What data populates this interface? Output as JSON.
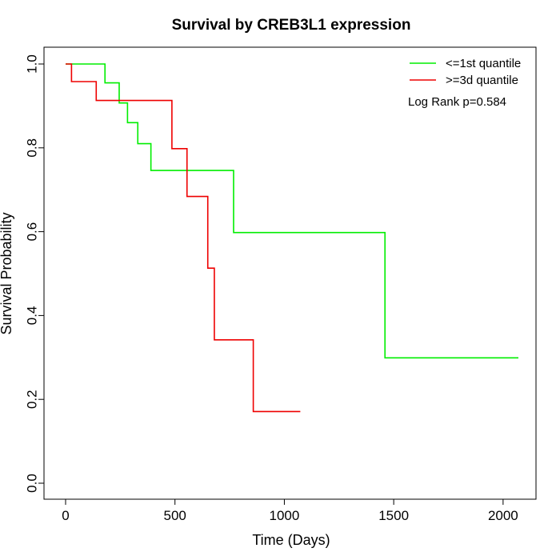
{
  "chart_data": {
    "type": "line",
    "title": "Survival by CREB3L1 expression",
    "xlabel": "Time (Days)",
    "ylabel": "Survival Probability",
    "xlim": [
      0,
      2100
    ],
    "ylim": [
      0,
      1
    ],
    "x_ticks": [
      0,
      500,
      1000,
      1500,
      2000
    ],
    "x_tick_labels": [
      "0",
      "500",
      "1000",
      "1500",
      "2000"
    ],
    "y_ticks": [
      0.0,
      0.2,
      0.4,
      0.6,
      0.8,
      1.0
    ],
    "y_tick_labels": [
      "0.0",
      "0.2",
      "0.4",
      "0.6",
      "0.8",
      "1.0"
    ],
    "grid": false,
    "legend_position": "top-right",
    "annotation": "Log Rank p=0.584",
    "series": [
      {
        "name": "<=1st quantile",
        "color": "#00ee00",
        "step": true,
        "points": [
          {
            "x": 0,
            "y": 1.0
          },
          {
            "x": 180,
            "y": 0.955
          },
          {
            "x": 245,
            "y": 0.907
          },
          {
            "x": 283,
            "y": 0.86
          },
          {
            "x": 330,
            "y": 0.81
          },
          {
            "x": 390,
            "y": 0.746
          },
          {
            "x": 768,
            "y": 0.598
          },
          {
            "x": 1460,
            "y": 0.299
          },
          {
            "x": 2070,
            "y": 0.299
          }
        ]
      },
      {
        "name": ">=3d quantile",
        "color": "#ee0000",
        "step": true,
        "points": [
          {
            "x": 0,
            "y": 1.0
          },
          {
            "x": 27,
            "y": 0.958
          },
          {
            "x": 140,
            "y": 0.913
          },
          {
            "x": 486,
            "y": 0.798
          },
          {
            "x": 555,
            "y": 0.684
          },
          {
            "x": 650,
            "y": 0.513
          },
          {
            "x": 680,
            "y": 0.342
          },
          {
            "x": 858,
            "y": 0.171
          },
          {
            "x": 1073,
            "y": 0.171
          }
        ]
      }
    ]
  }
}
